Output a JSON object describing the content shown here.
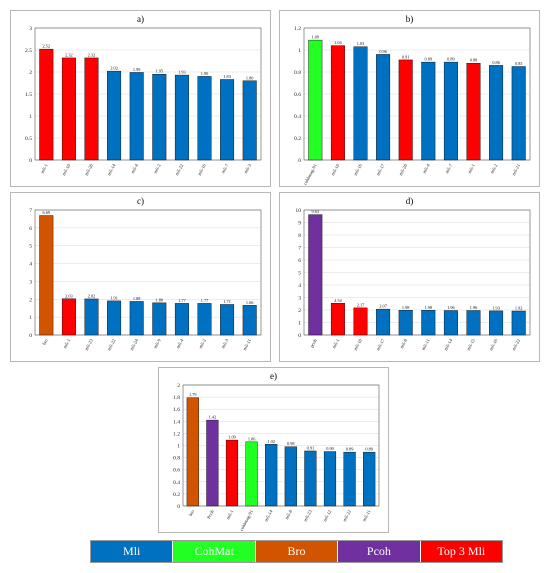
{
  "colors": {
    "Mli": "#0070c0",
    "CohMat": "#22ff22",
    "Bro": "#d35400",
    "Pcoh": "#7030a0",
    "Top3": "#ff0000"
  },
  "legend": [
    {
      "label": "Mli",
      "color_key": "Mli"
    },
    {
      "label": "CohMat",
      "color_key": "CohMat"
    },
    {
      "label": "Bro",
      "color_key": "Bro"
    },
    {
      "label": "Pcoh",
      "color_key": "Pcoh"
    },
    {
      "label": "Top 3 Mli",
      "color_key": "Top3"
    }
  ],
  "chart_data": [
    {
      "type": "bar",
      "title": "a)",
      "categories": [
        "mli-1",
        "mli-10",
        "mli-20",
        "mli-14",
        "mli-4",
        "mli-2",
        "mli-22",
        "mli-16",
        "mli-7",
        "mli-3"
      ],
      "values": [
        2.52,
        2.32,
        2.32,
        2.02,
        1.99,
        1.95,
        1.93,
        1.9,
        1.83,
        1.8
      ],
      "value_labels": [
        "2.52",
        "2.32",
        "2.32",
        "2.02",
        "1.99",
        "1.95",
        "1.93",
        "1.90",
        "1.83",
        "1.80"
      ],
      "groups": [
        "Top3",
        "Top3",
        "Top3",
        "Mli",
        "Mli",
        "Mli",
        "Mli",
        "Mli",
        "Mli",
        "Mli"
      ],
      "ylim": [
        0,
        3
      ],
      "yticks": [
        0,
        0.5,
        1,
        1.5,
        2,
        2.5,
        3
      ],
      "ytick_labels": [
        "0",
        "0.5",
        "1",
        "1.5",
        "2",
        "2.5",
        "3"
      ],
      "grid": true
    },
    {
      "type": "bar",
      "title": "b)",
      "categories": [
        "cohbmag-91",
        "mli-10",
        "mli-16",
        "mli-17",
        "mli-20",
        "mli-4",
        "mli-7",
        "mli-1",
        "mli-2",
        "mli-21"
      ],
      "values": [
        1.09,
        1.04,
        1.03,
        0.96,
        0.91,
        0.89,
        0.89,
        0.88,
        0.86,
        0.85
      ],
      "value_labels": [
        "1.09",
        "1.04",
        "1.03",
        "0.96",
        "0.91",
        "0.89",
        "0.89",
        "0.88",
        "0.86",
        "0.85"
      ],
      "groups": [
        "CohMat",
        "Top3",
        "Mli",
        "Mli",
        "Top3",
        "Mli",
        "Mli",
        "Top3",
        "Mli",
        "Mli"
      ],
      "ylim": [
        0,
        1.2
      ],
      "yticks": [
        0,
        0.2,
        0.4,
        0.6,
        0.8,
        1,
        1.2
      ],
      "ytick_labels": [
        "0",
        "0.2",
        "0.4",
        "0.6",
        "0.8",
        "1",
        "1.2"
      ],
      "grid": true
    },
    {
      "type": "bar",
      "title": "c)",
      "categories": [
        "bro",
        "mli-1",
        "mli-23",
        "mli-22",
        "mli-24",
        "mli-9",
        "mli-4",
        "mli-2",
        "mli-3",
        "mli-11"
      ],
      "values": [
        6.69,
        2.03,
        2.02,
        1.91,
        1.88,
        1.8,
        1.77,
        1.77,
        1.71,
        1.66
      ],
      "value_labels": [
        "6.69",
        "2.03",
        "2.02",
        "1.91",
        "1.88",
        "1.80",
        "1.77",
        "1.77",
        "1.71",
        "1.66"
      ],
      "groups": [
        "Bro",
        "Top3",
        "Mli",
        "Mli",
        "Mli",
        "Mli",
        "Mli",
        "Mli",
        "Mli",
        "Mli"
      ],
      "ylim": [
        0,
        7
      ],
      "yticks": [
        0,
        1,
        2,
        3,
        4,
        5,
        6,
        7
      ],
      "ytick_labels": [
        "0",
        "1",
        "2",
        "3",
        "4",
        "5",
        "6",
        "7"
      ],
      "grid": true
    },
    {
      "type": "bar",
      "title": "d)",
      "categories": [
        "pcoh",
        "mli-1",
        "mli-10",
        "mli-17",
        "mli-8",
        "mli-11",
        "mli-14",
        "mli-15",
        "mli-16",
        "mli-22"
      ],
      "values": [
        9.63,
        2.54,
        2.17,
        2.07,
        1.98,
        1.98,
        1.96,
        1.96,
        1.93,
        1.92
      ],
      "value_labels": [
        "9.63",
        "2.54",
        "2.17",
        "2.07",
        "1.98",
        "1.98",
        "1.96",
        "1.96",
        "1.93",
        "1.92"
      ],
      "groups": [
        "Pcoh",
        "Top3",
        "Top3",
        "Mli",
        "Mli",
        "Mli",
        "Mli",
        "Mli",
        "Mli",
        "Mli"
      ],
      "ylim": [
        0,
        10
      ],
      "yticks": [
        0,
        1,
        2,
        3,
        4,
        5,
        6,
        7,
        8,
        9,
        10
      ],
      "ytick_labels": [
        "0",
        "1",
        "2",
        "3",
        "4",
        "5",
        "6",
        "7",
        "8",
        "9",
        "10"
      ],
      "grid": true
    },
    {
      "type": "bar",
      "title": "e)",
      "categories": [
        "bro",
        "Pcoh",
        "mli-1",
        "cohbmag-91",
        "mli-14",
        "mli-8",
        "mli-23",
        "mli-12",
        "mli-22",
        "mli-11"
      ],
      "values": [
        1.79,
        1.42,
        1.09,
        1.06,
        1.02,
        0.98,
        0.91,
        0.9,
        0.89,
        0.89
      ],
      "value_labels": [
        "1.79",
        "1.42",
        "1.09",
        "1.06",
        "1.02",
        "0.98",
        "0.91",
        "0.90",
        "0.89",
        "0.89"
      ],
      "groups": [
        "Bro",
        "Pcoh",
        "Top3",
        "CohMat",
        "Mli",
        "Mli",
        "Mli",
        "Mli",
        "Mli",
        "Mli"
      ],
      "ylim": [
        0,
        2
      ],
      "yticks": [
        0,
        0.2,
        0.4,
        0.6,
        0.8,
        1,
        1.2,
        1.4,
        1.6,
        1.8,
        2
      ],
      "ytick_labels": [
        "0",
        "0.2",
        "0.4",
        "0.6",
        "0.8",
        "1",
        "1.2",
        "1.4",
        "1.6",
        "1.8",
        "2"
      ],
      "grid": true
    }
  ]
}
